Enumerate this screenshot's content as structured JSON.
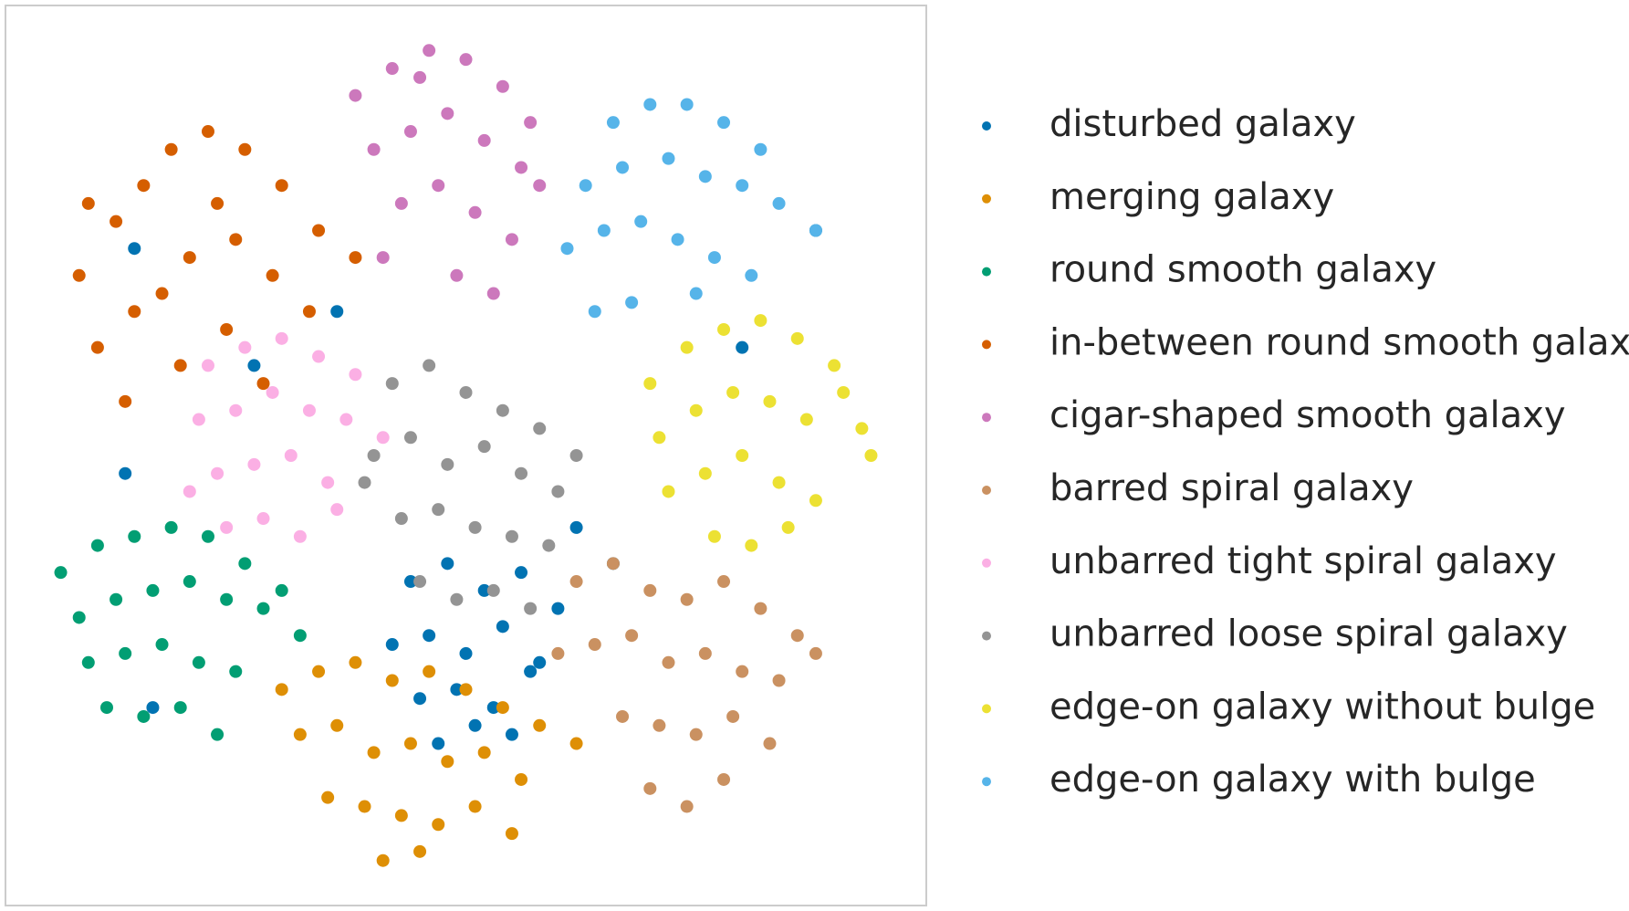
{
  "chart_data": {
    "type": "scatter",
    "legend": "right",
    "xlim": [
      0,
      100
    ],
    "ylim": [
      0,
      100
    ],
    "series": [
      {
        "name": "disturbed galaxy",
        "color": "#0173b2",
        "x": [
          44,
          48,
          52,
          56,
          60,
          42,
          46,
          50,
          54,
          58,
          45,
          49,
          53,
          57,
          47,
          51,
          55,
          62,
          66,
          14,
          27,
          36,
          80,
          88,
          13,
          16
        ],
        "values": [
          36,
          38,
          35,
          37,
          33,
          29,
          30,
          28,
          31,
          27,
          23,
          24,
          22,
          26,
          18,
          20,
          19,
          42,
          38,
          73,
          60,
          66,
          62,
          75,
          48,
          22
        ]
      },
      {
        "name": "merging galaxy",
        "color": "#de8f05",
        "x": [
          30,
          34,
          38,
          42,
          46,
          50,
          54,
          58,
          62,
          32,
          36,
          40,
          44,
          48,
          52,
          56,
          35,
          39,
          43,
          47,
          51,
          55,
          41,
          45
        ],
        "values": [
          24,
          26,
          27,
          25,
          26,
          24,
          22,
          20,
          18,
          19,
          20,
          17,
          18,
          16,
          17,
          14,
          12,
          11,
          10,
          9,
          11,
          8,
          5,
          6
        ]
      },
      {
        "name": "round smooth galaxy",
        "color": "#029e73",
        "x": [
          6,
          10,
          14,
          18,
          22,
          26,
          8,
          12,
          16,
          20,
          24,
          28,
          32,
          9,
          13,
          17,
          21,
          25,
          11,
          15,
          19,
          23,
          30
        ],
        "values": [
          37,
          40,
          41,
          42,
          41,
          38,
          32,
          34,
          35,
          36,
          34,
          33,
          30,
          27,
          28,
          29,
          27,
          26,
          22,
          21,
          22,
          19,
          35
        ]
      },
      {
        "name": "in-between round smooth galaxy",
        "color": "#d55e00",
        "x": [
          8,
          12,
          15,
          18,
          22,
          26,
          30,
          34,
          38,
          10,
          14,
          20,
          25,
          29,
          33,
          13,
          19,
          24,
          28,
          9,
          17,
          23
        ],
        "values": [
          70,
          76,
          80,
          84,
          86,
          84,
          80,
          75,
          72,
          62,
          66,
          72,
          74,
          70,
          66,
          56,
          60,
          64,
          58,
          78,
          68,
          78
        ]
      },
      {
        "name": "cigar-shaped smooth galaxy",
        "color": "#cc78bc",
        "x": [
          38,
          42,
          46,
          50,
          54,
          57,
          40,
          44,
          48,
          52,
          56,
          43,
          47,
          51,
          55,
          41,
          49,
          53,
          45,
          58
        ],
        "values": [
          90,
          93,
          95,
          94,
          91,
          87,
          84,
          86,
          88,
          85,
          82,
          78,
          80,
          77,
          74,
          72,
          70,
          68,
          92,
          80
        ]
      },
      {
        "name": "barred spiral galaxy",
        "color": "#ca9161",
        "x": [
          62,
          66,
          70,
          74,
          78,
          82,
          86,
          60,
          64,
          68,
          72,
          76,
          80,
          84,
          88,
          67,
          71,
          75,
          79,
          83,
          70,
          74,
          78
        ],
        "values": [
          36,
          38,
          35,
          34,
          36,
          33,
          30,
          28,
          29,
          30,
          27,
          28,
          26,
          25,
          28,
          21,
          20,
          19,
          21,
          18,
          13,
          11,
          14
        ]
      },
      {
        "name": "unbarred tight spiral galaxy",
        "color": "#fbafe4",
        "x": [
          22,
          26,
          30,
          34,
          38,
          21,
          25,
          29,
          33,
          37,
          41,
          23,
          27,
          31,
          35,
          24,
          28,
          32,
          36,
          20
        ],
        "values": [
          60,
          62,
          63,
          61,
          59,
          54,
          55,
          57,
          55,
          54,
          52,
          48,
          49,
          50,
          47,
          42,
          43,
          41,
          44,
          46
        ]
      },
      {
        "name": "unbarred loose spiral galaxy",
        "color": "#949494",
        "x": [
          42,
          46,
          50,
          54,
          58,
          40,
          44,
          48,
          52,
          56,
          60,
          43,
          47,
          51,
          55,
          59,
          45,
          49,
          53,
          57,
          39,
          62
        ],
        "values": [
          58,
          60,
          57,
          55,
          53,
          50,
          52,
          49,
          51,
          48,
          46,
          43,
          44,
          42,
          41,
          40,
          36,
          34,
          35,
          33,
          47,
          50
        ]
      },
      {
        "name": "edge-on galaxy without bulge",
        "color": "#ece133",
        "x": [
          70,
          74,
          78,
          82,
          86,
          90,
          71,
          75,
          79,
          83,
          87,
          93,
          72,
          76,
          80,
          84,
          88,
          94,
          77,
          81,
          85,
          91
        ],
        "values": [
          58,
          62,
          64,
          65,
          63,
          60,
          52,
          55,
          57,
          56,
          54,
          53,
          46,
          48,
          50,
          47,
          45,
          50,
          41,
          40,
          42,
          57
        ]
      },
      {
        "name": "edge-on galaxy with bulge",
        "color": "#56b4e9",
        "x": [
          66,
          70,
          74,
          78,
          82,
          63,
          67,
          72,
          76,
          80,
          84,
          61,
          65,
          69,
          73,
          77,
          81,
          64,
          68,
          75,
          88
        ],
        "values": [
          87,
          89,
          89,
          87,
          84,
          80,
          82,
          83,
          81,
          80,
          78,
          73,
          75,
          76,
          74,
          72,
          70,
          66,
          67,
          68,
          75
        ]
      }
    ]
  }
}
